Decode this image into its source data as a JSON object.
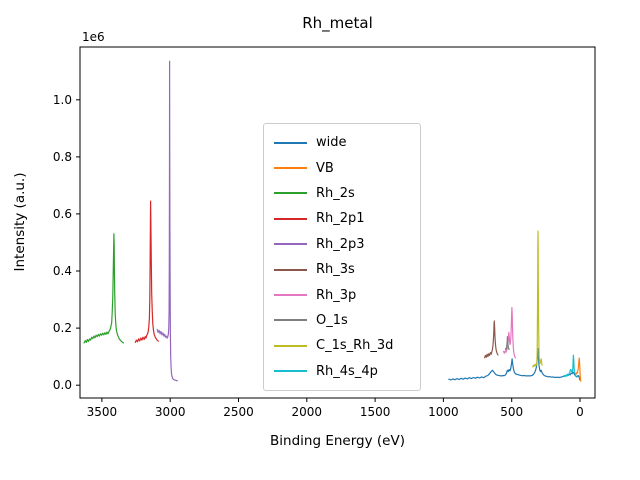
{
  "chart_data": {
    "type": "line",
    "title": "Rh_metal",
    "xlabel": "Binding Energy (eV)",
    "ylabel": "Intensity (a.u.)",
    "offset_text": "1e6",
    "grid": false,
    "legend_position": "center",
    "x_axis_reversed": true,
    "xlim": [
      3660,
      -110
    ],
    "ylim": [
      -45000,
      1185000
    ],
    "xticks": [
      3500,
      3000,
      2500,
      2000,
      1500,
      1000,
      500,
      0
    ],
    "xtick_labels": [
      "3500",
      "3000",
      "2500",
      "2000",
      "1500",
      "1000",
      "500",
      "0"
    ],
    "yticks": [
      0,
      200000,
      400000,
      600000,
      800000,
      1000000
    ],
    "ytick_labels": [
      "0.0",
      "0.2",
      "0.4",
      "0.6",
      "0.8",
      "1.0"
    ],
    "y_unit_scale": 1000,
    "series": [
      {
        "name": "wide",
        "color": "#1f77b4",
        "x": [
          960,
          945,
          930,
          915,
          900,
          885,
          870,
          855,
          840,
          825,
          810,
          795,
          780,
          765,
          750,
          735,
          720,
          705,
          690,
          675,
          662,
          650,
          640,
          632,
          624,
          615,
          605,
          595,
          585,
          575,
          565,
          555,
          545,
          538,
          531,
          525,
          519,
          513,
          507,
          501,
          497,
          492,
          486,
          480,
          472,
          464,
          456,
          448,
          440,
          430,
          420,
          410,
          400,
          390,
          380,
          370,
          360,
          350,
          340,
          332,
          325,
          318,
          312,
          308,
          304,
          300,
          295,
          290,
          284,
          278,
          270,
          262,
          254,
          246,
          238,
          230,
          222,
          214,
          206,
          198,
          190,
          182,
          174,
          166,
          158,
          150,
          142,
          134,
          126,
          118,
          110,
          102,
          95,
          88,
          80,
          72,
          65,
          58,
          51,
          45,
          38,
          31,
          25,
          19,
          13,
          8,
          4,
          0
        ],
        "y": [
          21,
          18,
          22,
          19,
          23,
          20,
          24,
          21,
          25,
          22,
          26,
          23,
          27,
          24,
          28,
          25,
          29,
          26,
          31,
          34,
          40,
          48,
          52,
          47,
          42,
          37,
          35,
          34,
          33,
          32,
          34,
          33,
          36,
          42,
          52,
          48,
          55,
          50,
          58,
          75,
          92,
          72,
          55,
          45,
          40,
          38,
          37,
          36,
          35,
          34,
          33,
          34,
          33,
          32,
          33,
          32,
          33,
          34,
          38,
          44,
          52,
          65,
          95,
          128,
          100,
          70,
          55,
          48,
          52,
          44,
          38,
          34,
          32,
          31,
          30,
          29,
          30,
          29,
          28,
          29,
          28,
          27,
          28,
          27,
          28,
          27,
          28,
          29,
          30,
          32,
          34,
          33,
          36,
          34,
          38,
          36,
          42,
          40,
          46,
          42,
          36,
          32,
          29,
          31,
          34,
          30,
          24,
          18
        ]
      },
      {
        "name": "VB",
        "color": "#ff7f0e",
        "x": [
          30,
          27,
          24,
          21,
          18,
          15,
          12,
          10,
          8,
          6,
          4,
          2,
          0,
          -2,
          -4,
          -6
        ],
        "y": [
          38,
          42,
          40,
          46,
          44,
          52,
          60,
          72,
          85,
          95,
          88,
          70,
          48,
          30,
          20,
          14
        ]
      },
      {
        "name": "Rh_2s",
        "color": "#2ca02c",
        "x": [
          3630,
          3622,
          3614,
          3606,
          3598,
          3590,
          3582,
          3574,
          3566,
          3558,
          3550,
          3542,
          3534,
          3526,
          3518,
          3510,
          3502,
          3494,
          3486,
          3478,
          3470,
          3462,
          3454,
          3446,
          3440,
          3434,
          3428,
          3424,
          3420,
          3417,
          3414,
          3412,
          3410,
          3408,
          3405,
          3402,
          3398,
          3394,
          3390,
          3384,
          3378,
          3372,
          3366,
          3360,
          3354,
          3348,
          3342
        ],
        "y": [
          148,
          156,
          150,
          160,
          153,
          162,
          158,
          168,
          163,
          172,
          166,
          175,
          170,
          178,
          172,
          180,
          175,
          182,
          176,
          184,
          178,
          186,
          180,
          190,
          195,
          205,
          220,
          255,
          310,
          390,
          470,
          530,
          490,
          400,
          310,
          250,
          215,
          195,
          185,
          175,
          168,
          162,
          158,
          155,
          152,
          150,
          148
        ]
      },
      {
        "name": "Rh_2p1",
        "color": "#d62728",
        "x": [
          3255,
          3247,
          3239,
          3231,
          3223,
          3215,
          3207,
          3199,
          3191,
          3183,
          3177,
          3171,
          3165,
          3160,
          3156,
          3152,
          3149,
          3147,
          3145,
          3143,
          3141,
          3138,
          3135,
          3131,
          3127,
          3122,
          3117,
          3111,
          3105,
          3099,
          3093,
          3087
        ],
        "y": [
          150,
          158,
          152,
          162,
          155,
          165,
          158,
          168,
          160,
          170,
          165,
          175,
          180,
          190,
          205,
          235,
          300,
          420,
          560,
          645,
          560,
          430,
          320,
          255,
          215,
          192,
          178,
          170,
          165,
          160,
          157,
          154
        ]
      },
      {
        "name": "Rh_2p3",
        "color": "#9467bd",
        "x": [
          3095,
          3088,
          3081,
          3074,
          3067,
          3060,
          3053,
          3046,
          3040,
          3034,
          3028,
          3022,
          3017,
          3013,
          3010,
          3008,
          3006,
          3005,
          3004,
          3003,
          3002,
          3000,
          2998,
          2996,
          2993,
          2990,
          2986,
          2982,
          2977,
          2972,
          2966,
          2960,
          2954,
          2948
        ],
        "y": [
          195,
          185,
          192,
          180,
          188,
          176,
          183,
          172,
          178,
          168,
          172,
          165,
          170,
          180,
          205,
          260,
          420,
          760,
          1135,
          900,
          560,
          300,
          170,
          100,
          62,
          40,
          30,
          24,
          21,
          19,
          18,
          17,
          16,
          16
        ]
      },
      {
        "name": "Rh_3s",
        "color": "#8c564b",
        "x": [
          698,
          692,
          686,
          680,
          674,
          668,
          662,
          656,
          650,
          645,
          641,
          637,
          634,
          631,
          629,
          627,
          625,
          623,
          620,
          617,
          613,
          609,
          605,
          600
        ],
        "y": [
          96,
          104,
          98,
          108,
          100,
          110,
          104,
          114,
          108,
          118,
          125,
          140,
          160,
          185,
          210,
          225,
          205,
          175,
          150,
          135,
          122,
          115,
          110,
          106
        ]
      },
      {
        "name": "Rh_3p",
        "color": "#e377c2",
        "x": [
          560,
          554,
          548,
          542,
          537,
          532,
          528,
          524,
          521,
          518,
          515,
          512,
          509,
          506,
          503,
          500,
          498,
          496,
          494,
          492,
          489,
          486,
          482,
          477,
          472
        ],
        "y": [
          118,
          112,
          120,
          115,
          122,
          128,
          140,
          165,
          185,
          170,
          152,
          142,
          148,
          170,
          210,
          255,
          272,
          250,
          205,
          168,
          140,
          120,
          108,
          100,
          96
        ]
      },
      {
        "name": "O_1s",
        "color": "#7f7f7f",
        "x": [
          545,
          542,
          539,
          536,
          533,
          531,
          529,
          527,
          525,
          522,
          519
        ],
        "y": [
          128,
          124,
          130,
          138,
          155,
          170,
          158,
          142,
          134,
          128,
          125
        ]
      },
      {
        "name": "C_1s_Rh_3d",
        "color": "#bcbd22",
        "x": [
          345,
          340,
          335,
          330,
          326,
          322,
          318,
          315,
          313,
          311,
          309,
          308,
          307,
          306,
          305,
          303,
          301,
          299,
          296,
          293,
          290,
          287,
          284,
          281,
          278
        ],
        "y": [
          64,
          70,
          66,
          72,
          68,
          74,
          70,
          80,
          120,
          260,
          420,
          500,
          540,
          480,
          360,
          220,
          140,
          100,
          82,
          76,
          80,
          88,
          92,
          80,
          70
        ]
      },
      {
        "name": "Rh_4s_4p",
        "color": "#17becf",
        "x": [
          115,
          110,
          105,
          100,
          95,
          90,
          85,
          80,
          76,
          72,
          68,
          64,
          61,
          58,
          55,
          52,
          50,
          48,
          46,
          44,
          42,
          39,
          36,
          33,
          30,
          27
        ],
        "y": [
          30,
          34,
          31,
          36,
          32,
          38,
          34,
          40,
          44,
          50,
          55,
          52,
          48,
          46,
          50,
          62,
          85,
          105,
          92,
          70,
          55,
          45,
          40,
          36,
          33,
          31
        ]
      }
    ]
  }
}
